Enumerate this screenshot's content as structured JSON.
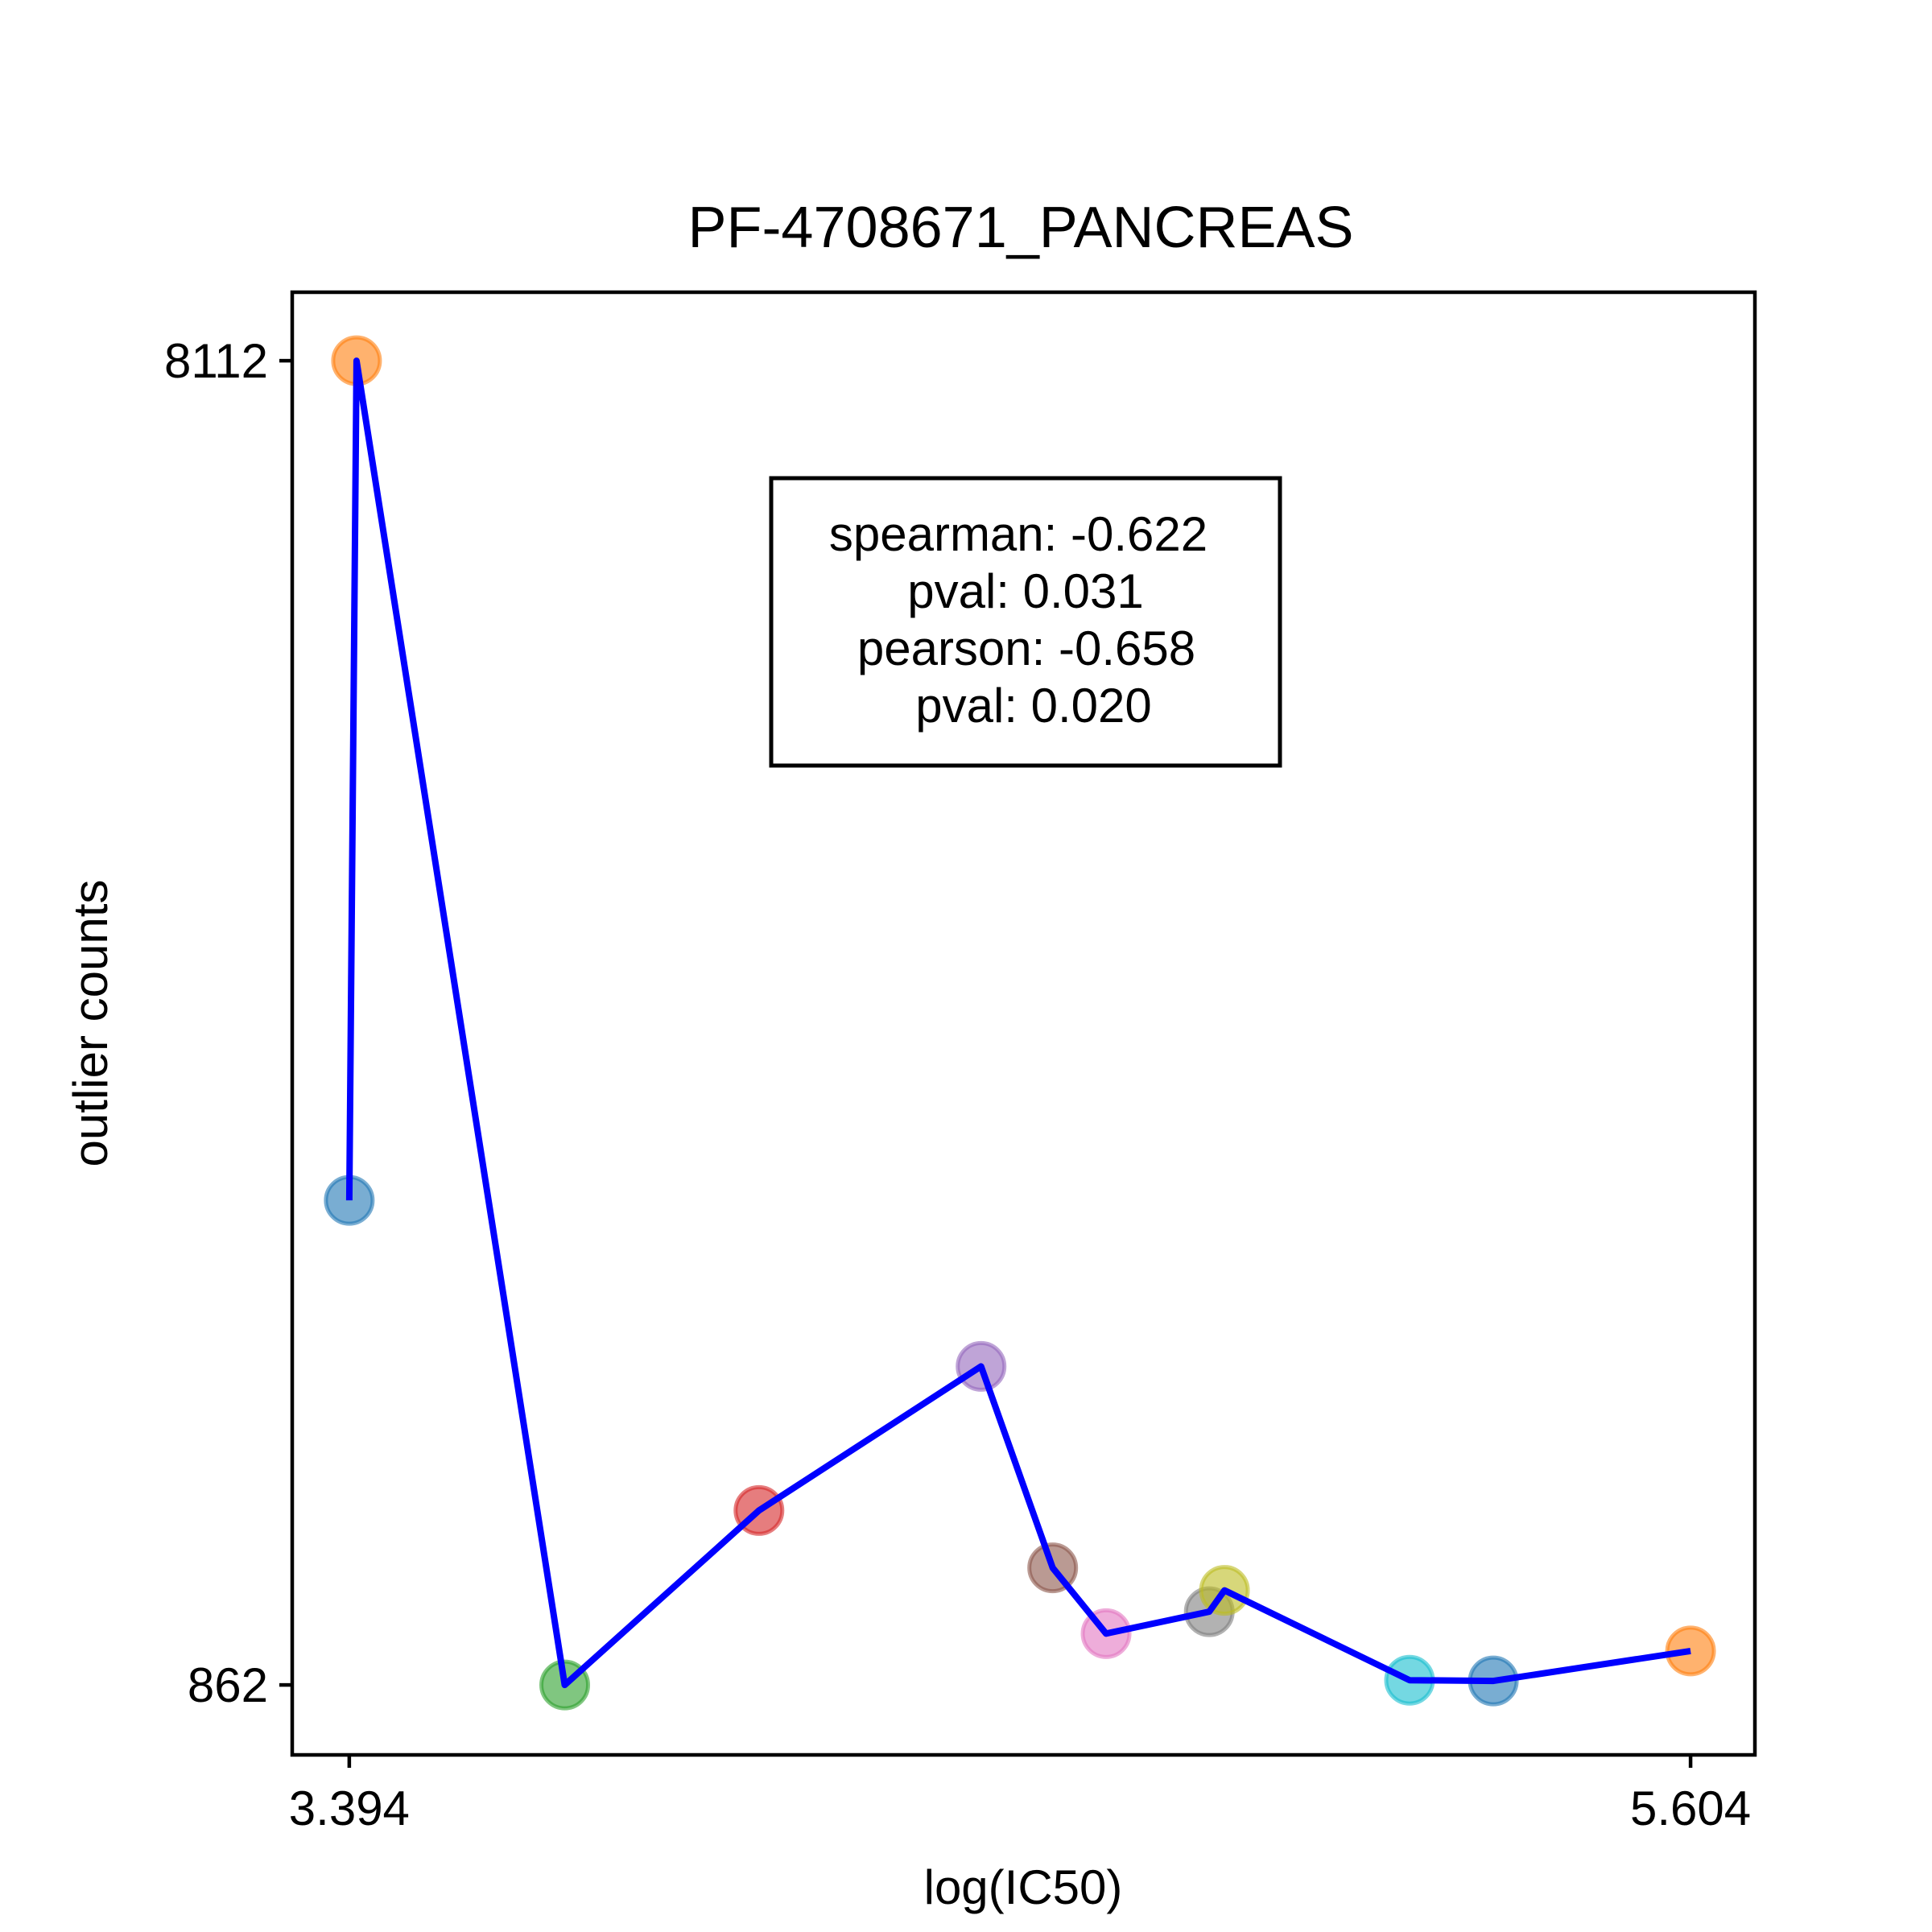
{
  "chart_data": {
    "type": "scatter",
    "title": "PF-4708671_PANCREAS",
    "xlabel": "log(IC50)",
    "ylabel": "outlier counts",
    "xlim": [
      3.3,
      5.71
    ],
    "ylim": [
      479,
      8487
    ],
    "x_ticks": [
      3.394,
      5.604
    ],
    "x_tick_labels": [
      "3.394",
      "5.604"
    ],
    "y_ticks": [
      8112,
      862
    ],
    "y_tick_labels": [
      "8112",
      "862"
    ],
    "grid": false,
    "points": [
      {
        "x": 3.394,
        "y": 3515,
        "color": "#1f77b4"
      },
      {
        "x": 3.406,
        "y": 8112,
        "color": "#ff7f0e"
      },
      {
        "x": 3.749,
        "y": 862,
        "color": "#2ca02c"
      },
      {
        "x": 4.069,
        "y": 1817,
        "color": "#d62728"
      },
      {
        "x": 4.435,
        "y": 2606,
        "color": "#9467bd"
      },
      {
        "x": 4.553,
        "y": 1503,
        "color": "#8c564b"
      },
      {
        "x": 4.641,
        "y": 1143,
        "color": "#e377c2"
      },
      {
        "x": 4.811,
        "y": 1263,
        "color": "#7f7f7f"
      },
      {
        "x": 4.836,
        "y": 1380,
        "color": "#bcbd22"
      },
      {
        "x": 5.141,
        "y": 888,
        "color": "#17becf"
      },
      {
        "x": 5.279,
        "y": 884,
        "color": "#1f77b4"
      },
      {
        "x": 5.604,
        "y": 1048,
        "color": "#ff7f0e"
      }
    ],
    "line_color": "#0000ff",
    "stats_lines": [
      "spearman: -0.622",
      "pval: 0.031",
      "pearson: -0.658",
      "pval: 0.020"
    ]
  }
}
